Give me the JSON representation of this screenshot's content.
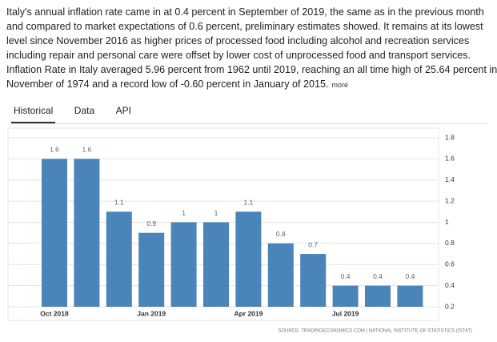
{
  "text_lines": [
    "Italy's annual inflation rate came in at 0.4 percent in September of 2019, the same as in the previous month",
    "and compared to market expectations of 0.6 percent, preliminary estimates showed. It remains at its lowest",
    "level since November 2016 as higher prices of processed food including alcohol and recreation services",
    "including repair and personal care were offset by lower cost of unprocessed food and transport services.",
    "Inflation Rate in Italy averaged 5.96 percent from 1962 until 2019, reaching an all time high of 25.64 percent in",
    "November of 1974 and a record low of -0.60 percent in January of 2015."
  ],
  "more": "more",
  "tabs": [
    "Historical",
    "Data",
    "API"
  ],
  "chart_data": {
    "type": "bar",
    "categories": [
      "Oct 2018",
      null,
      null,
      "Jan 2019",
      null,
      null,
      "Apr 2019",
      null,
      null,
      "Jul 2019",
      null,
      null
    ],
    "values": [
      1.6,
      1.6,
      1.1,
      0.9,
      1,
      1,
      1.1,
      0.8,
      0.7,
      0.4,
      0.4,
      0.4
    ],
    "color": "#4a84b8",
    "ylim": [
      0.2,
      1.8
    ],
    "yticks": [
      0.2,
      0.4,
      0.6,
      0.8,
      1,
      1.2,
      1.4,
      1.6,
      1.8
    ],
    "grid": true,
    "source": "SOURCE: TRADINGECONOMICS.COM | NATIONAL INSTITUTE OF STATISTICS (ISTAT)"
  }
}
